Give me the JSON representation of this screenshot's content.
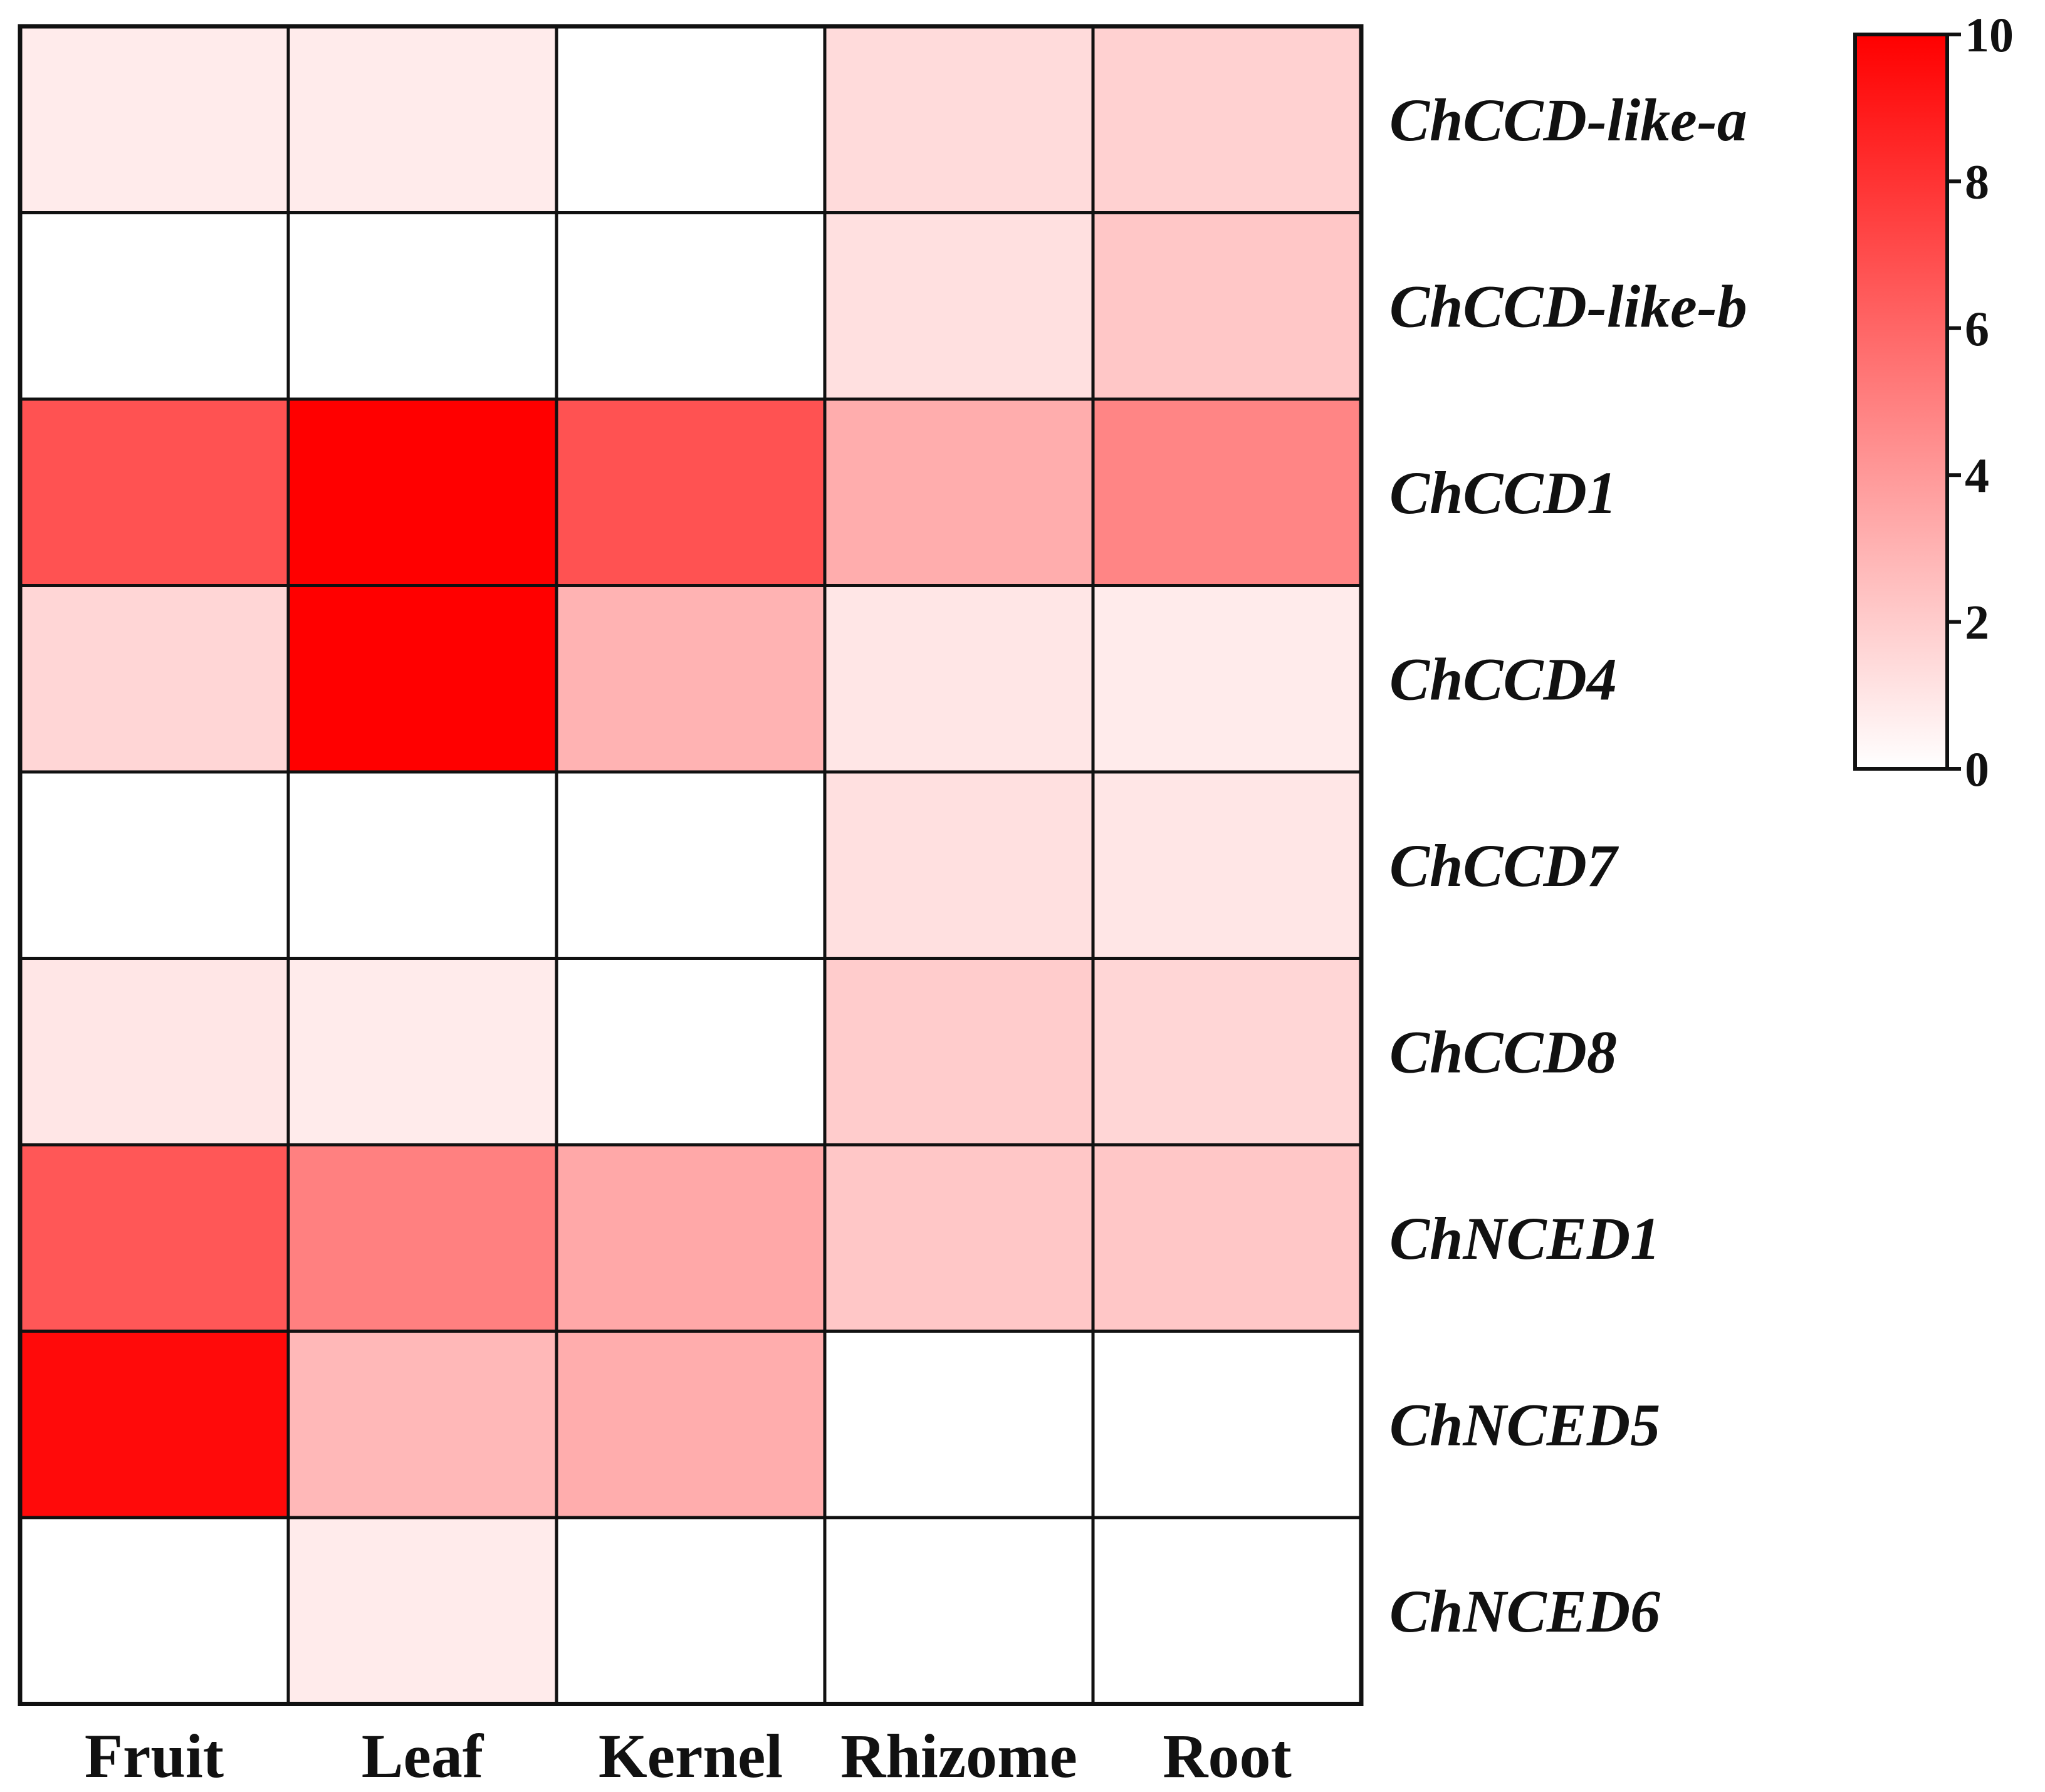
{
  "chart_data": {
    "type": "heatmap",
    "title": "",
    "xlabel": "",
    "ylabel": "",
    "columns": [
      "Fruit",
      "Leaf",
      "Kernel",
      "Rhizome",
      "Root"
    ],
    "rows": [
      "ChCCD-like-a",
      "ChCCD-like-b",
      "ChCCD1",
      "ChCCD4",
      "ChCCD7",
      "ChCCD8",
      "ChNCED1",
      "ChNCED5",
      "ChNCED6"
    ],
    "values": [
      [
        0.8,
        0.8,
        0.0,
        1.4,
        1.8
      ],
      [
        0.0,
        0.0,
        0.0,
        1.2,
        2.2
      ],
      [
        6.8,
        10.0,
        6.8,
        3.2,
        4.8
      ],
      [
        1.6,
        10.0,
        3.0,
        1.0,
        0.8
      ],
      [
        0.0,
        0.0,
        0.0,
        1.2,
        1.0
      ],
      [
        1.0,
        0.8,
        0.0,
        2.0,
        1.6
      ],
      [
        6.6,
        5.0,
        3.4,
        2.2,
        2.2
      ],
      [
        9.6,
        2.8,
        3.2,
        0.0,
        0.0
      ],
      [
        0.0,
        0.8,
        0.0,
        0.0,
        0.0
      ]
    ],
    "colorbar": {
      "min": 0,
      "max": 10,
      "ticks": [
        "0",
        "2",
        "4",
        "6",
        "8",
        "10"
      ],
      "low_color": "#ffffff",
      "high_color": "#ff0000"
    }
  }
}
